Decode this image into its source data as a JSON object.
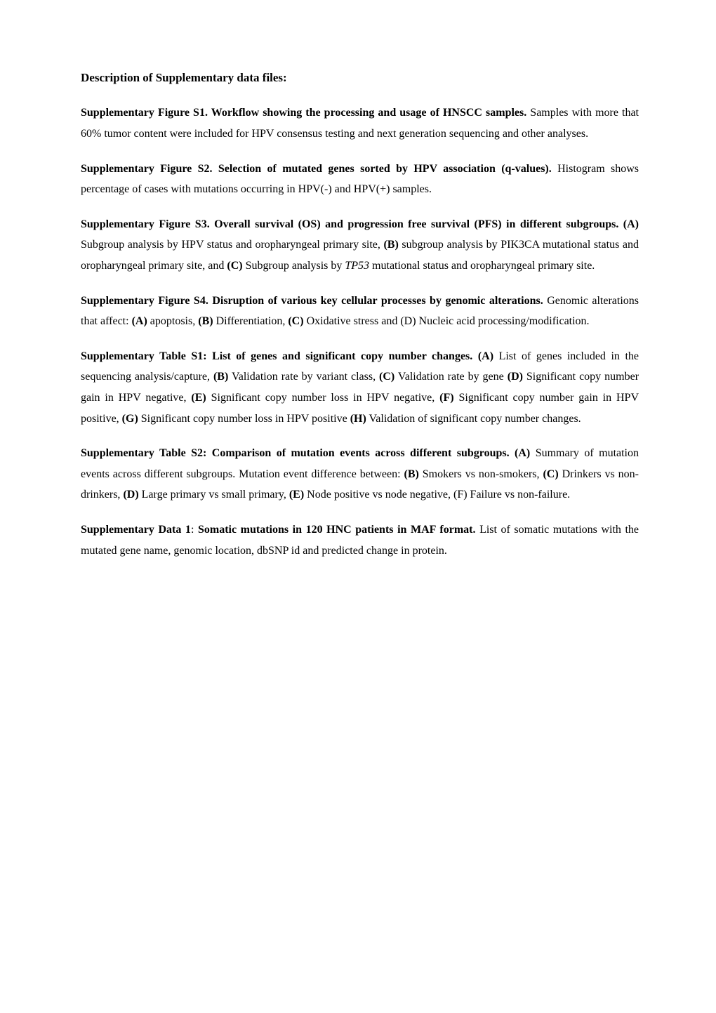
{
  "heading": "Description of Supplementary data files:",
  "p1": {
    "lead": "Supplementary Figure S1. Workflow showing the processing and usage of HNSCC samples.",
    "body": " Samples with more that 60% tumor content were included for HPV consensus testing and next generation sequencing and other analyses."
  },
  "p2": {
    "lead": "Supplementary Figure S2. Selection of mutated genes sorted by HPV association (q-values).",
    "body": " Histogram shows percentage of cases with mutations occurring in HPV(-) and HPV(+) samples."
  },
  "p3": {
    "lead": "Supplementary Figure S3. Overall survival (OS) and progression free survival (PFS) in different subgroups. (A)",
    "a_body": " Subgroup analysis by HPV status and oropharyngeal primary site, ",
    "b_label": "(B)",
    "b_body": " subgroup analysis by PIK3CA mutational status and oropharyngeal primary site, and ",
    "c_label": "(C)",
    "c_body": " Subgroup analysis by ",
    "tp53": "TP53",
    "c_tail": " mutational status and oropharyngeal primary site."
  },
  "p4": {
    "lead": "Supplementary Figure S4. Disruption of various key cellular processes by genomic alterations.",
    "pre": " Genomic alterations that affect: ",
    "a_label": "(A)",
    "a_body": " apoptosis, ",
    "b_label": "(B)",
    "b_body": " Differentiation, ",
    "c_label": "(C)",
    "c_body": " Oxidative stress and (D) Nucleic acid processing/modification."
  },
  "p5": {
    "lead": "Supplementary Table S1: List of genes and significant copy number changes. (A)",
    "a_body": " List of genes included in the sequencing analysis/capture, ",
    "b_label": "(B)",
    "b_body": " Validation rate by variant class, ",
    "c_label": "(C)",
    "c_body": " Validation rate by gene ",
    "d_label": "(D)",
    "d_body": " Significant copy number gain in HPV negative, ",
    "e_label": "(E)",
    "e_body": " Significant copy number loss in HPV negative, ",
    "f_label": "(F)",
    "f_body": " Significant copy number gain in HPV positive, ",
    "g_label": "(G)",
    "g_body": " Significant copy number loss in HPV positive ",
    "h_label": "(H)",
    "h_body": " Validation of significant copy number changes."
  },
  "p6": {
    "lead": "Supplementary Table S2: Comparison of mutation events across different subgroups. (A)",
    "a_body": " Summary of mutation events across different subgroups. Mutation event difference between: ",
    "b_label": "(B)",
    "b_body": " Smokers vs non-smokers, ",
    "c_label": "(C)",
    "c_body": " Drinkers vs non-drinkers, ",
    "d_label": "(D)",
    "d_body": " Large primary vs small primary, ",
    "e_label": "(E)",
    "e_body": " Node positive vs node negative, (F) Failure vs non-failure."
  },
  "p7": {
    "lead1": "Supplementary Data 1",
    "colon": ": ",
    "lead2": "Somatic mutations in 120 HNC patients in MAF format.",
    "body": " List of somatic mutations with the mutated gene name, genomic location, dbSNP id and predicted change in protein."
  }
}
